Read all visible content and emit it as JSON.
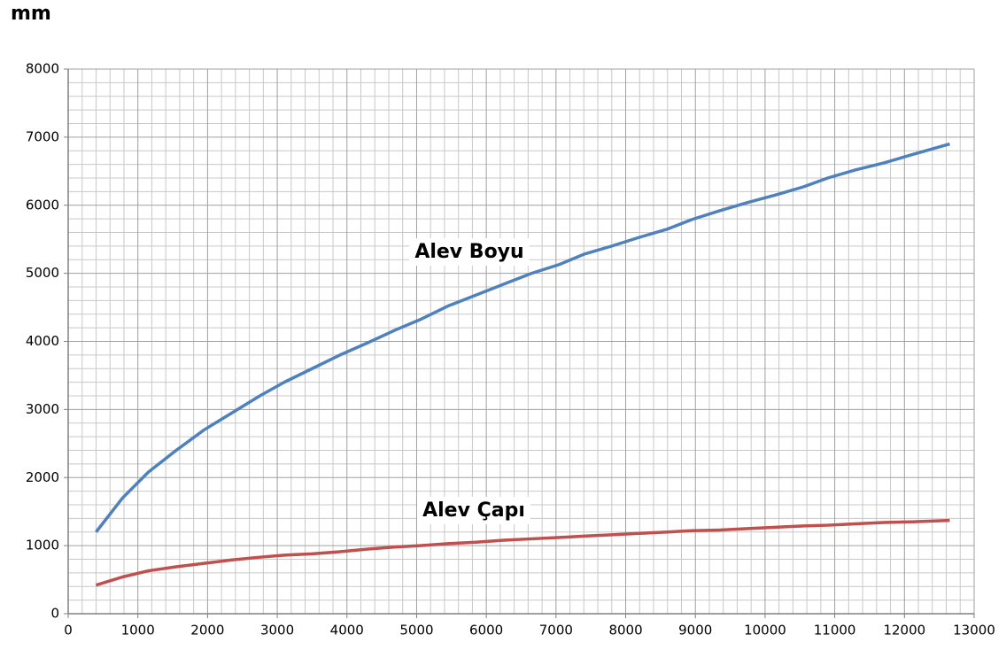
{
  "chart_data": {
    "type": "line",
    "y_axis_label": "mm",
    "x": [
      400,
      780,
      1150,
      1550,
      1950,
      2350,
      2750,
      3100,
      3500,
      3900,
      4300,
      4700,
      5050,
      5450,
      5850,
      6250,
      6650,
      7050,
      7400,
      7800,
      8200,
      8600,
      8950,
      9350,
      9750,
      10150,
      10550,
      10900,
      11300,
      11700,
      12100,
      12650
    ],
    "series": [
      {
        "name": "Alev Boyu",
        "color": "#4f81bd",
        "values": [
          1200,
          1700,
          2080,
          2400,
          2700,
          2950,
          3200,
          3400,
          3600,
          3800,
          3980,
          4170,
          4320,
          4520,
          4680,
          4840,
          5000,
          5130,
          5280,
          5400,
          5530,
          5650,
          5790,
          5920,
          6040,
          6150,
          6270,
          6400,
          6520,
          6620,
          6740,
          6900
        ]
      },
      {
        "name": "Alev Çapı",
        "color": "#c0504d",
        "values": [
          420,
          540,
          630,
          690,
          740,
          790,
          830,
          860,
          880,
          910,
          950,
          980,
          1000,
          1030,
          1050,
          1080,
          1100,
          1120,
          1140,
          1160,
          1180,
          1200,
          1220,
          1230,
          1250,
          1270,
          1290,
          1300,
          1320,
          1340,
          1350,
          1370
        ]
      }
    ],
    "xlim": [
      0,
      13000
    ],
    "xticks": [
      0,
      1000,
      2000,
      3000,
      4000,
      5000,
      6000,
      7000,
      8000,
      9000,
      10000,
      11000,
      12000,
      13000
    ],
    "ylim": [
      0,
      8000
    ],
    "yticks": [
      0,
      1000,
      2000,
      3000,
      4000,
      5000,
      6000,
      7000,
      8000
    ],
    "grid": true,
    "grid_subdivisions": 5
  }
}
